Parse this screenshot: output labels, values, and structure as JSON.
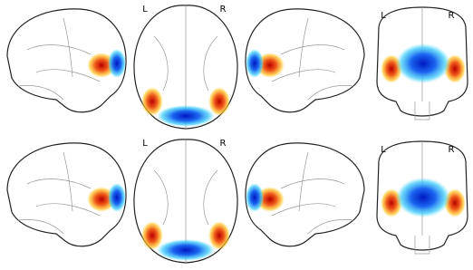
{
  "rows": [
    {
      "axial": {
        "left": "L",
        "right": "R"
      },
      "coronal": {
        "left": "L",
        "right": "R"
      }
    },
    {
      "axial": {
        "left": "L",
        "right": "R"
      },
      "coronal": {
        "left": "L",
        "right": "R"
      }
    }
  ]
}
